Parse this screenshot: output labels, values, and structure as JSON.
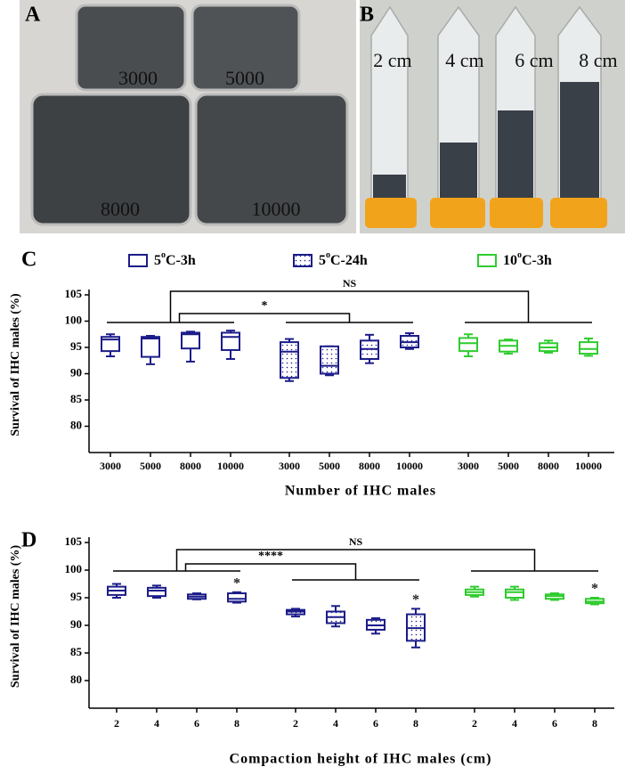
{
  "panel_a": {
    "label": "A",
    "texts": [
      "3000",
      "5000",
      "8000",
      "10000"
    ]
  },
  "panel_b": {
    "label": "B",
    "texts": [
      "2 cm",
      "4 cm",
      "6 cm",
      "8 cm"
    ]
  },
  "chart_data": [
    {
      "type": "box",
      "panel": "C",
      "ylabel": "Survival of IHC males (%)",
      "xlabel": "Number of IHC males",
      "ylim": [
        75,
        105
      ],
      "yticks": [
        80,
        85,
        90,
        95,
        100,
        105
      ],
      "significance": [
        "NS",
        "*"
      ],
      "series": [
        {
          "name": "5oC-3h",
          "color": "#1c1c8a",
          "fill": "none",
          "categories": [
            "3000",
            "5000",
            "8000",
            "10000"
          ],
          "min": [
            93.3,
            91.8,
            92.3,
            92.8
          ],
          "q1": [
            94.3,
            93.2,
            94.8,
            94.5
          ],
          "median": [
            96.5,
            96.7,
            97.5,
            97
          ],
          "q3": [
            97,
            97,
            97.8,
            97.8
          ],
          "max": [
            97.5,
            97.2,
            98,
            98.2
          ]
        },
        {
          "name": "5oC-24h",
          "color": "#1c1c8a",
          "fill": "dots",
          "categories": [
            "3000",
            "5000",
            "8000",
            "10000"
          ],
          "min": [
            88.6,
            89.7,
            92,
            94.7
          ],
          "q1": [
            89.2,
            90,
            92.8,
            95
          ],
          "median": [
            94.2,
            91.5,
            94.7,
            96
          ],
          "q3": [
            96,
            95.2,
            96.3,
            97.2
          ],
          "max": [
            96.6,
            95.2,
            97.4,
            97.7
          ]
        },
        {
          "name": "10oC-3h",
          "color": "#2ecc2e",
          "fill": "none",
          "categories": [
            "3000",
            "5000",
            "8000",
            "10000"
          ],
          "min": [
            93.3,
            93.8,
            94,
            93.4
          ],
          "q1": [
            94.3,
            94.2,
            94.3,
            93.8
          ],
          "median": [
            95.8,
            95.3,
            95,
            94.7
          ],
          "q3": [
            96.8,
            96.3,
            95.8,
            96
          ],
          "max": [
            97.5,
            96.5,
            96.3,
            96.7
          ]
        }
      ]
    },
    {
      "type": "box",
      "panel": "D",
      "ylabel": "Survival of IHC males (%)",
      "xlabel": "Compaction height of IHC males (cm)",
      "ylim": [
        75,
        105
      ],
      "yticks": [
        80,
        85,
        90,
        95,
        100,
        105
      ],
      "significance": [
        "NS",
        "****"
      ],
      "series": [
        {
          "color": "#1c1c8a",
          "fill": "none",
          "categories": [
            "2",
            "4",
            "6",
            "8"
          ],
          "flags": [
            null,
            null,
            null,
            "*"
          ],
          "min": [
            95,
            95,
            94.7,
            94.1
          ],
          "q1": [
            95.5,
            95.3,
            94.8,
            94.3
          ],
          "median": [
            96.3,
            96.3,
            95.2,
            94.8
          ],
          "q3": [
            97,
            96.8,
            95.6,
            95.8
          ],
          "max": [
            97.5,
            97.2,
            95.8,
            96
          ]
        },
        {
          "color": "#1c1c8a",
          "fill": "dots",
          "categories": [
            "2",
            "4",
            "6",
            "8"
          ],
          "flags": [
            null,
            null,
            null,
            "*"
          ],
          "min": [
            91.6,
            89.8,
            88.5,
            86
          ],
          "q1": [
            92,
            90.4,
            89.2,
            87.2
          ],
          "median": [
            92.5,
            91.5,
            90,
            89.5
          ],
          "q3": [
            92.8,
            92.5,
            91,
            92
          ],
          "max": [
            93,
            93.5,
            91.3,
            93
          ]
        },
        {
          "color": "#2ecc2e",
          "fill": "none",
          "categories": [
            "2",
            "4",
            "6",
            "8"
          ],
          "flags": [
            null,
            null,
            null,
            "*"
          ],
          "min": [
            95.2,
            94.6,
            94.6,
            93.8
          ],
          "q1": [
            95.5,
            95,
            94.8,
            94
          ],
          "median": [
            96,
            96,
            95.3,
            94.3
          ],
          "q3": [
            96.5,
            96.5,
            95.6,
            94.8
          ],
          "max": [
            97,
            97,
            95.8,
            95
          ]
        }
      ]
    }
  ]
}
